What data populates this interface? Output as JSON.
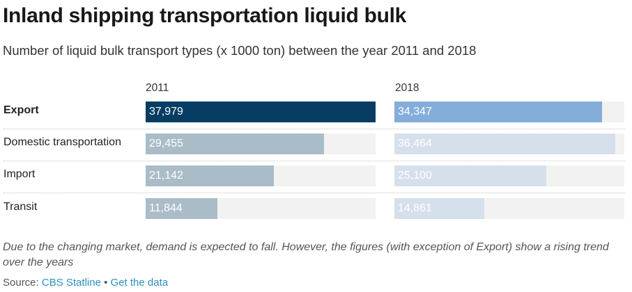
{
  "header": {
    "title": "Inland shipping transportation liquid bulk",
    "subtitle": "Number of liquid bulk transport types (x 1000 ton) between the year 2011 and 2018"
  },
  "chart_data": {
    "type": "bar",
    "title": "Inland shipping transportation liquid bulk",
    "subtitle": "Number of liquid bulk transport types (x 1000 ton) between the year 2011 and 2018",
    "categories": [
      "Export",
      "Domestic transportation",
      "Import",
      "Transit"
    ],
    "category_emphasis": [
      "bold",
      "normal",
      "normal",
      "normal"
    ],
    "series": [
      {
        "name": "2011",
        "values": [
          37979,
          29455,
          21142,
          11844
        ],
        "labels": [
          "37,979",
          "29,455",
          "21,142",
          "11,844"
        ],
        "colors": [
          "#073d63",
          "#aabcc7",
          "#aabcc7",
          "#aabcc7"
        ]
      },
      {
        "name": "2018",
        "values": [
          34347,
          36464,
          25100,
          14861
        ],
        "labels": [
          "34,347",
          "36,464",
          "25,100",
          "14,861"
        ],
        "colors": [
          "#84add9",
          "#d5e0ec",
          "#d5e0ec",
          "#d5e0ec"
        ]
      }
    ],
    "xlim": [
      0,
      38000
    ],
    "track_color": "#f2f2f2",
    "grid": false,
    "legend": "none"
  },
  "footer": {
    "note": "Due to the changing market, demand is expected to fall. However, the figures (with exception of Export) show a rising trend over the years",
    "source_prefix": "Source:",
    "source_link": "CBS Statline",
    "separator": "•",
    "data_link": "Get the data"
  }
}
